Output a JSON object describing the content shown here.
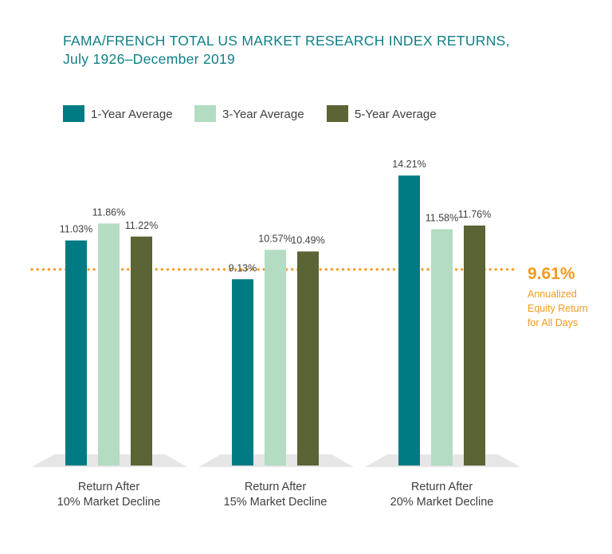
{
  "title": {
    "line1": "FAMA/FRENCH TOTAL US MARKET RESEARCH INDEX RETURNS,",
    "line2": "July 1926–December 2019"
  },
  "legend": [
    {
      "label": "1-Year Average"
    },
    {
      "label": "3-Year Average"
    },
    {
      "label": "5-Year Average"
    }
  ],
  "reference": {
    "value_label": "9.61%",
    "note": [
      "Annualized",
      "Equity Return",
      "for All Days"
    ]
  },
  "chart_data": {
    "type": "bar",
    "title": "FAMA/FRENCH TOTAL US MARKET RESEARCH INDEX RETURNS, July 1926–December 2019",
    "categories": [
      [
        "Return After",
        "10% Market Decline"
      ],
      [
        "Return After",
        "15% Market Decline"
      ],
      [
        "Return After",
        "20% Market Decline"
      ]
    ],
    "series": [
      {
        "name": "1-Year Average",
        "color": "#007b83",
        "values": [
          11.03,
          9.13,
          14.21
        ],
        "labels": [
          "11.03%",
          "9.13%",
          "14.21%"
        ]
      },
      {
        "name": "3-Year Average",
        "color": "#b3dcc2",
        "values": [
          11.86,
          10.57,
          11.58
        ],
        "labels": [
          "11.86%",
          "10.57%",
          "11.58%"
        ]
      },
      {
        "name": "5-Year Average",
        "color": "#5a6434",
        "values": [
          11.22,
          10.49,
          11.76
        ],
        "labels": [
          "11.22%",
          "10.49%",
          "11.76%"
        ]
      }
    ],
    "reference_line": {
      "value": 9.61,
      "color": "#f39a1e",
      "style": "dotted"
    },
    "ylim": [
      0,
      16
    ],
    "grid": false,
    "legend_position": "top-left",
    "axis_labels_shown": false
  }
}
